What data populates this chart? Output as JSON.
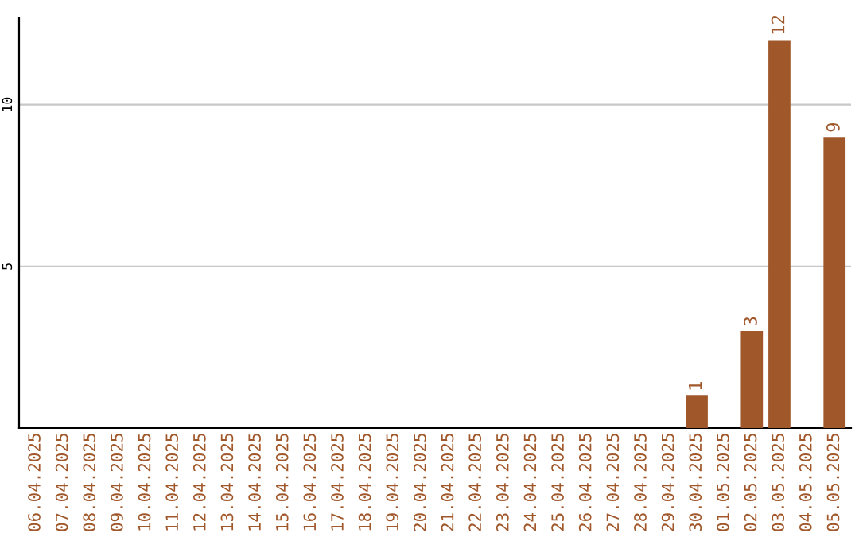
{
  "chart_data": {
    "type": "bar",
    "categories": [
      "06.04.2025",
      "07.04.2025",
      "08.04.2025",
      "09.04.2025",
      "10.04.2025",
      "11.04.2025",
      "12.04.2025",
      "13.04.2025",
      "14.04.2025",
      "15.04.2025",
      "16.04.2025",
      "17.04.2025",
      "18.04.2025",
      "19.04.2025",
      "20.04.2025",
      "21.04.2025",
      "22.04.2025",
      "23.04.2025",
      "24.04.2025",
      "25.04.2025",
      "26.04.2025",
      "27.04.2025",
      "28.04.2025",
      "29.04.2025",
      "30.04.2025",
      "01.05.2025",
      "02.05.2025",
      "03.05.2025",
      "04.05.2025",
      "05.05.2025"
    ],
    "values": [
      0,
      0,
      0,
      0,
      0,
      0,
      0,
      0,
      0,
      0,
      0,
      0,
      0,
      0,
      0,
      0,
      0,
      0,
      0,
      0,
      0,
      0,
      0,
      0,
      1,
      0,
      3,
      12,
      0,
      9
    ],
    "value_labels": [
      null,
      null,
      null,
      null,
      null,
      null,
      null,
      null,
      null,
      null,
      null,
      null,
      null,
      null,
      null,
      null,
      null,
      null,
      null,
      null,
      null,
      null,
      null,
      null,
      "1",
      null,
      "3",
      "12",
      null,
      "9"
    ],
    "color": "#a0572a",
    "ylim": [
      0,
      12.7
    ],
    "yticks": [
      5,
      10
    ],
    "grid": "y"
  }
}
